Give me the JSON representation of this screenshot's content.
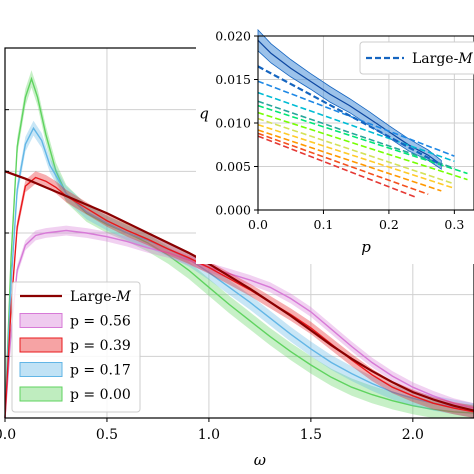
{
  "chart_data": [
    {
      "type": "line",
      "xlabel": "ω",
      "ylabel": "",
      "xlim": [
        0,
        2.3
      ],
      "ylim": [
        0,
        3.0
      ],
      "x_ticks": [
        0.0,
        0.5,
        1.0,
        1.5,
        2.0
      ],
      "x_tick_labels": [
        "0.0",
        "0.5",
        "1.0",
        "1.5",
        "2.0"
      ],
      "y_ticks": [
        0.5,
        1.0,
        1.5,
        2.0,
        2.5,
        3.0
      ],
      "grid": true,
      "legend_position": "lower-left",
      "legend": [
        {
          "label": "Large-",
          "label_italic": "M",
          "style": "line",
          "color": "#8b0000"
        },
        {
          "label": "p = 0.56",
          "style": "band",
          "color": "#d77ad7"
        },
        {
          "label": "p = 0.39",
          "style": "band",
          "color": "#e8181c"
        },
        {
          "label": "p = 0.17",
          "style": "band",
          "color": "#62b6e6"
        },
        {
          "label": "p = 0.00",
          "style": "band",
          "color": "#5fd35f"
        }
      ],
      "series": [
        {
          "name": "Large-M",
          "color": "#8b0000",
          "width": 2.2,
          "x": [
            0,
            0.1,
            0.2,
            0.3,
            0.4,
            0.5,
            0.6,
            0.7,
            0.8,
            0.9,
            1.0,
            1.1,
            1.2,
            1.3,
            1.4,
            1.5,
            1.6,
            1.7,
            1.8,
            1.9,
            2.0,
            2.1,
            2.2,
            2.3
          ],
          "y": [
            2.0,
            1.94,
            1.87,
            1.8,
            1.73,
            1.66,
            1.58,
            1.5,
            1.42,
            1.34,
            1.25,
            1.15,
            1.05,
            0.94,
            0.83,
            0.71,
            0.59,
            0.48,
            0.38,
            0.29,
            0.21,
            0.15,
            0.1,
            0.06
          ]
        },
        {
          "name": "p = 0.56",
          "color": "#d77ad7",
          "band": 0.04,
          "x": [
            0,
            0.03,
            0.06,
            0.1,
            0.15,
            0.2,
            0.3,
            0.4,
            0.5,
            0.6,
            0.7,
            0.8,
            0.9,
            1.0,
            1.1,
            1.2,
            1.3,
            1.4,
            1.5,
            1.6,
            1.7,
            1.8,
            1.9,
            2.0,
            2.1,
            2.2,
            2.3
          ],
          "y": [
            0,
            0.7,
            1.2,
            1.4,
            1.48,
            1.5,
            1.52,
            1.5,
            1.47,
            1.43,
            1.38,
            1.34,
            1.28,
            1.22,
            1.17,
            1.12,
            1.06,
            0.97,
            0.86,
            0.72,
            0.58,
            0.45,
            0.34,
            0.25,
            0.18,
            0.12,
            0.08
          ]
        },
        {
          "name": "p = 0.39",
          "color": "#e8181c",
          "band": 0.05,
          "x": [
            0,
            0.03,
            0.06,
            0.1,
            0.15,
            0.2,
            0.25,
            0.3,
            0.4,
            0.5,
            0.6,
            0.7,
            0.8,
            0.9,
            1.0,
            1.1,
            1.2,
            1.3,
            1.4,
            1.5,
            1.6,
            1.7,
            1.8,
            1.9,
            2.0,
            2.1,
            2.2,
            2.3
          ],
          "y": [
            0,
            0.9,
            1.55,
            1.88,
            1.95,
            1.92,
            1.87,
            1.8,
            1.7,
            1.6,
            1.52,
            1.45,
            1.37,
            1.3,
            1.22,
            1.13,
            1.04,
            0.94,
            0.84,
            0.73,
            0.6,
            0.47,
            0.35,
            0.25,
            0.18,
            0.12,
            0.08,
            0.05
          ]
        },
        {
          "name": "p = 0.17",
          "color": "#62b6e6",
          "band": 0.06,
          "x": [
            0,
            0.03,
            0.06,
            0.1,
            0.14,
            0.18,
            0.22,
            0.3,
            0.4,
            0.5,
            0.6,
            0.7,
            0.8,
            0.9,
            1.0,
            1.1,
            1.2,
            1.3,
            1.4,
            1.5,
            1.6,
            1.7,
            1.8,
            1.9,
            2.0,
            2.1,
            2.2,
            2.3
          ],
          "y": [
            0,
            1.1,
            1.85,
            2.22,
            2.35,
            2.25,
            2.05,
            1.82,
            1.67,
            1.58,
            1.5,
            1.44,
            1.37,
            1.29,
            1.18,
            1.06,
            0.94,
            0.81,
            0.68,
            0.56,
            0.45,
            0.36,
            0.28,
            0.21,
            0.16,
            0.12,
            0.09,
            0.06
          ]
        },
        {
          "name": "p = 0.00",
          "color": "#5fd35f",
          "band": 0.07,
          "x": [
            0,
            0.03,
            0.06,
            0.1,
            0.13,
            0.16,
            0.2,
            0.25,
            0.3,
            0.4,
            0.5,
            0.6,
            0.7,
            0.8,
            0.9,
            1.0,
            1.1,
            1.2,
            1.3,
            1.4,
            1.5,
            1.6,
            1.7,
            1.8,
            1.9,
            2.0,
            2.1,
            2.2,
            2.3
          ],
          "y": [
            0,
            1.3,
            2.2,
            2.6,
            2.75,
            2.6,
            2.3,
            2.0,
            1.82,
            1.66,
            1.57,
            1.5,
            1.42,
            1.32,
            1.2,
            1.06,
            0.92,
            0.79,
            0.66,
            0.54,
            0.43,
            0.33,
            0.25,
            0.19,
            0.14,
            0.1,
            0.07,
            0.05,
            0.04
          ]
        }
      ]
    },
    {
      "type": "line",
      "xlabel": "p",
      "ylabel": "q",
      "xlim": [
        0,
        0.33
      ],
      "ylim": [
        0,
        0.02
      ],
      "x_ticks": [
        0.0,
        0.1,
        0.2,
        0.3
      ],
      "x_tick_labels": [
        "0.0",
        "0.1",
        "0.2",
        "0.3"
      ],
      "y_ticks": [
        0.0,
        0.005,
        0.01,
        0.015,
        0.02
      ],
      "y_tick_labels": [
        "0.000",
        "0.005",
        "0.010",
        "0.015",
        "0.020"
      ],
      "grid": true,
      "legend_position": "top-right",
      "legend": [
        {
          "label": "Large-",
          "label_italic": "M",
          "style": "dashed",
          "color": "#1565c0"
        }
      ],
      "band": {
        "color": "#4a90d9",
        "x": [
          0.0,
          0.02,
          0.05,
          0.08,
          0.11,
          0.14,
          0.17,
          0.2,
          0.23,
          0.26,
          0.28
        ],
        "y": [
          0.0195,
          0.018,
          0.0163,
          0.0148,
          0.0133,
          0.012,
          0.0105,
          0.009,
          0.0075,
          0.0063,
          0.0052
        ],
        "halfwidth": [
          0.0012,
          0.0011,
          0.001,
          0.0009,
          0.0009,
          0.0008,
          0.0008,
          0.0007,
          0.0007,
          0.0006,
          0.0005
        ]
      },
      "series": [
        {
          "name": "Large-M",
          "color": "#1565c0",
          "x": [
            0.0,
            0.28
          ],
          "y": [
            0.0165,
            0.0052
          ],
          "dashed": true,
          "width": 2.2
        },
        {
          "color": "#1e88e5",
          "x": [
            0.0,
            0.3
          ],
          "y": [
            0.0148,
            0.0062
          ],
          "dashed": true
        },
        {
          "color": "#00bcd4",
          "x": [
            0.0,
            0.3
          ],
          "y": [
            0.0135,
            0.0056
          ],
          "dashed": true
        },
        {
          "color": "#26a69a",
          "x": [
            0.0,
            0.3
          ],
          "y": [
            0.0125,
            0.0048
          ],
          "dashed": true
        },
        {
          "color": "#00e676",
          "x": [
            0.0,
            0.32
          ],
          "y": [
            0.012,
            0.0042
          ],
          "dashed": true
        },
        {
          "color": "#76ff03",
          "x": [
            0.0,
            0.32
          ],
          "y": [
            0.0112,
            0.0035
          ],
          "dashed": true
        },
        {
          "color": "#d4e157",
          "x": [
            0.0,
            0.3
          ],
          "y": [
            0.0105,
            0.003
          ],
          "dashed": true
        },
        {
          "color": "#ffca28",
          "x": [
            0.0,
            0.3
          ],
          "y": [
            0.0098,
            0.0025
          ],
          "dashed": true
        },
        {
          "color": "#ff9800",
          "x": [
            0.0,
            0.28
          ],
          "y": [
            0.0092,
            0.0022
          ],
          "dashed": true
        },
        {
          "color": "#f4511e",
          "x": [
            0.0,
            0.26
          ],
          "y": [
            0.0088,
            0.0018
          ],
          "dashed": true
        },
        {
          "color": "#e53935",
          "x": [
            0.0,
            0.24
          ],
          "y": [
            0.0085,
            0.0015
          ],
          "dashed": true
        }
      ]
    }
  ]
}
